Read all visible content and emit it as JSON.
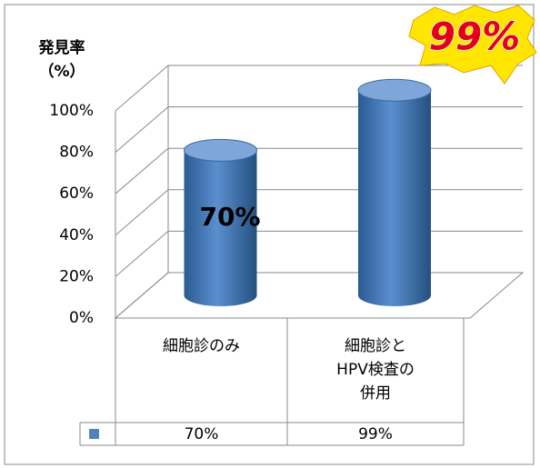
{
  "chart_data": {
    "type": "bar",
    "ylabel": "発見率\n（%）",
    "categories": [
      "細胞診のみ",
      "細胞診と\nHPV検査の\n併用"
    ],
    "values": [
      70,
      99
    ],
    "value_labels": [
      "70%",
      "99%"
    ],
    "color": "#4f81bd",
    "ylim": [
      0,
      100
    ],
    "yticks": [
      {
        "value": 0,
        "label": "0%"
      },
      {
        "value": 20,
        "label": "20%"
      },
      {
        "value": 40,
        "label": "40%"
      },
      {
        "value": 60,
        "label": "60%"
      },
      {
        "value": 80,
        "label": "80%"
      },
      {
        "value": 100,
        "label": "100%"
      }
    ],
    "grid": true
  }
}
